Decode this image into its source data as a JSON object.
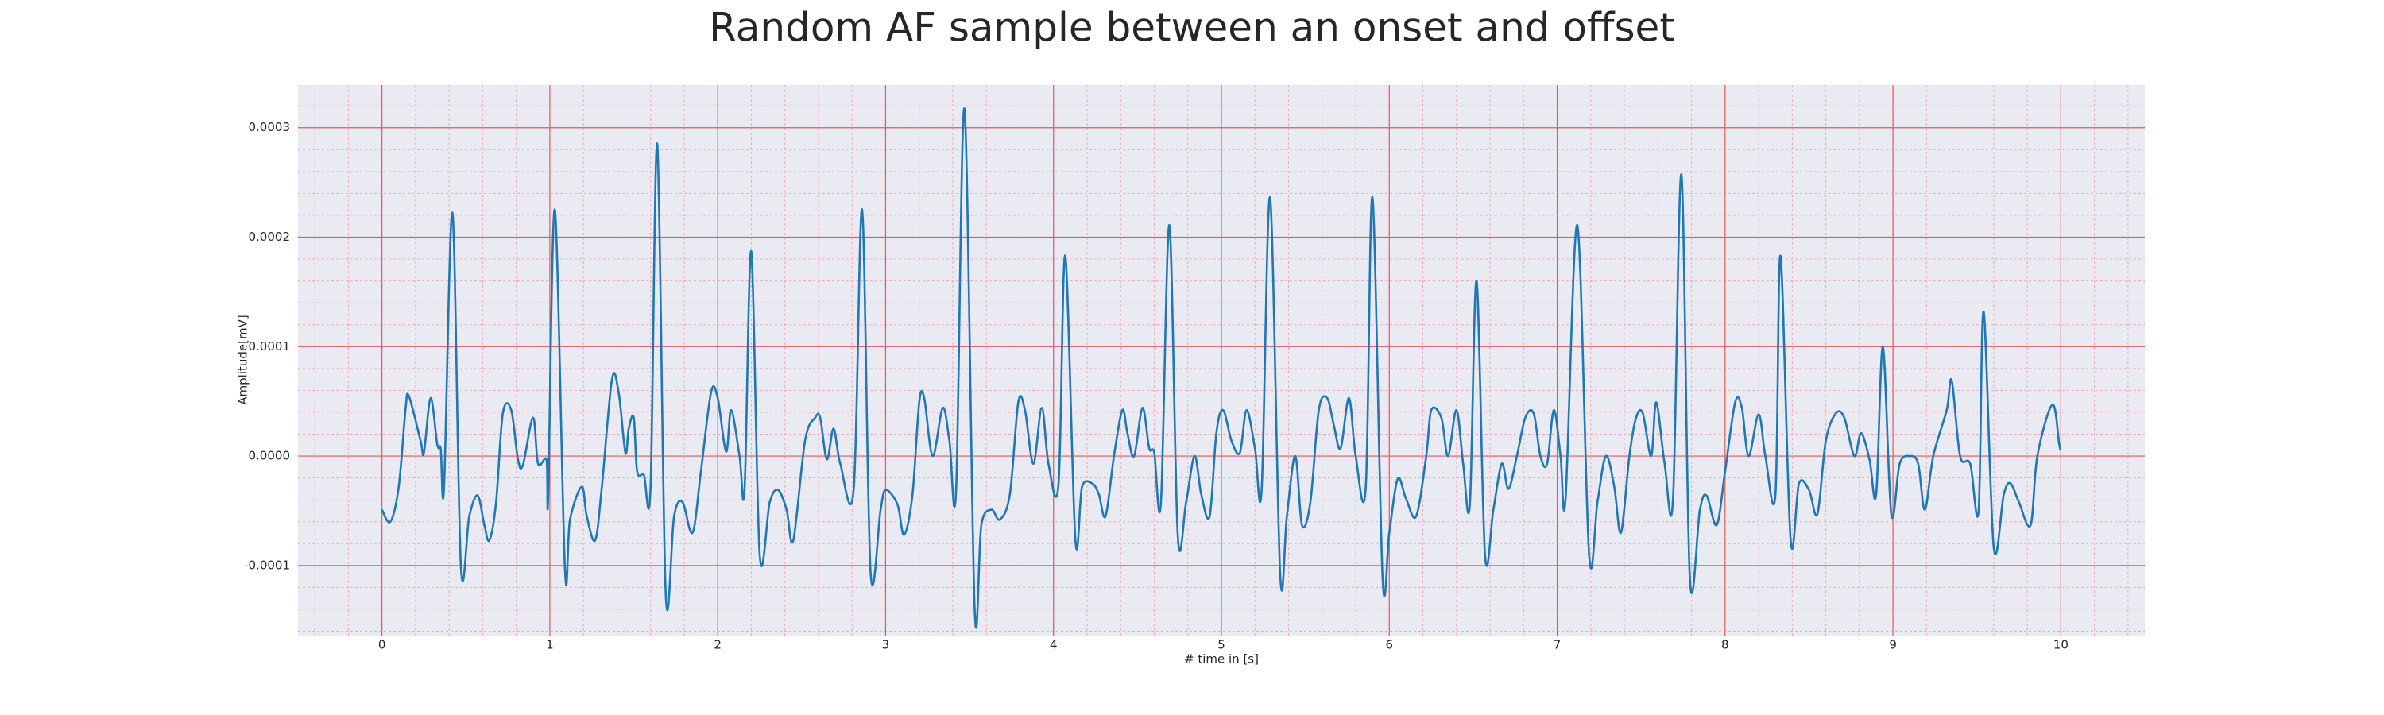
{
  "chart_data": {
    "type": "line",
    "title": "Random AF sample between an onset and offset",
    "xlabel": "# time in [s]",
    "ylabel": "Amplitude[mV]",
    "xlim": [
      -0.5,
      10.5
    ],
    "ylim": [
      -0.000164,
      0.000339
    ],
    "xticks": [
      0,
      1,
      2,
      3,
      4,
      5,
      6,
      7,
      8,
      9,
      10
    ],
    "yticks": [
      {
        "value": -0.0001,
        "label": "-0.0001"
      },
      {
        "value": 0,
        "label": "0.0000"
      },
      {
        "value": 0.0001,
        "label": "0.0001"
      },
      {
        "value": 0.0002,
        "label": "0.0002"
      },
      {
        "value": 0.0003,
        "label": "0.0003"
      }
    ],
    "grid": true,
    "minor_grid": true,
    "grid_color": "#e8585a",
    "minor_grid_color": "#f2a9b4",
    "background": "#eaeaf2",
    "series": [
      {
        "color": "#1f77b4",
        "x": [
          0,
          0.05,
          0.1,
          0.14,
          0.16,
          0.23,
          0.25,
          0.29,
          0.33,
          0.35,
          0.37,
          0.42,
          0.47,
          0.52,
          0.57,
          0.61,
          0.64,
          0.68,
          0.72,
          0.77,
          0.81,
          0.84,
          0.9,
          0.93,
          0.98,
          0.99,
          1.03,
          1.09,
          1.12,
          1.19,
          1.22,
          1.27,
          1.31,
          1.37,
          1.41,
          1.45,
          1.47,
          1.5,
          1.52,
          1.56,
          1.6,
          1.64,
          1.69,
          1.74,
          1.79,
          1.85,
          1.9,
          1.96,
          2.0,
          2.05,
          2.08,
          2.13,
          2.16,
          2.2,
          2.25,
          2.31,
          2.36,
          2.41,
          2.45,
          2.52,
          2.58,
          2.61,
          2.65,
          2.69,
          2.73,
          2.81,
          2.86,
          2.91,
          2.97,
          3.0,
          3.07,
          3.11,
          3.16,
          3.2,
          3.23,
          3.28,
          3.34,
          3.38,
          3.42,
          3.47,
          3.53,
          3.57,
          3.63,
          3.68,
          3.74,
          3.79,
          3.83,
          3.88,
          3.93,
          3.97,
          4.03,
          4.07,
          4.13,
          4.17,
          4.23,
          4.27,
          4.31,
          4.36,
          4.41,
          4.44,
          4.48,
          4.53,
          4.57,
          4.6,
          4.64,
          4.69,
          4.74,
          4.79,
          4.84,
          4.88,
          4.93,
          4.97,
          5.01,
          5.06,
          5.11,
          5.15,
          5.2,
          5.24,
          5.29,
          5.35,
          5.39,
          5.44,
          5.48,
          5.53,
          5.58,
          5.63,
          5.67,
          5.71,
          5.76,
          5.8,
          5.86,
          5.9,
          5.96,
          6.0,
          6.05,
          6.1,
          6.16,
          6.22,
          6.25,
          6.31,
          6.35,
          6.4,
          6.44,
          6.48,
          6.52,
          6.57,
          6.62,
          6.67,
          6.71,
          6.76,
          6.81,
          6.86,
          6.9,
          6.94,
          6.98,
          7.02,
          7.05,
          7.12,
          7.19,
          7.24,
          7.29,
          7.34,
          7.38,
          7.43,
          7.47,
          7.51,
          7.56,
          7.59,
          7.64,
          7.69,
          7.74,
          7.79,
          7.85,
          7.89,
          7.95,
          8.0,
          8.06,
          8.1,
          8.14,
          8.2,
          8.24,
          8.3,
          8.33,
          8.39,
          8.44,
          8.5,
          8.55,
          8.6,
          8.66,
          8.71,
          8.77,
          8.81,
          8.86,
          8.9,
          8.94,
          8.99,
          9.04,
          9.1,
          9.15,
          9.19,
          9.24,
          9.32,
          9.35,
          9.4,
          9.46,
          9.51,
          9.54,
          9.6,
          9.66,
          9.7,
          9.75,
          9.82,
          9.86,
          9.95,
          9.99,
          10.0
        ],
        "values": [
          -4.9e-05,
          -6e-05,
          -2.8e-05,
          4.2e-05,
          5.5e-05,
          1.4e-05,
          3e-06,
          5.3e-05,
          1e-05,
          7e-06,
          -2.8e-05,
          0.000222,
          -0.0001,
          -5.5e-05,
          -3.6e-05,
          -6.3e-05,
          -7.7e-05,
          -4.2e-05,
          3.9e-05,
          4.2e-05,
          -3e-06,
          -8e-06,
          3.5e-05,
          -7e-06,
          -3e-06,
          -3.7e-05,
          0.000225,
          -0.000103,
          -5.8e-05,
          -2.8e-05,
          -5.5e-05,
          -7.7e-05,
          -2.8e-05,
          7e-05,
          5.8e-05,
          3e-06,
          2.5e-05,
          3.5e-05,
          -1.4e-05,
          -1.7e-05,
          -2.8e-05,
          0.000285,
          -0.000125,
          -5.5e-05,
          -4.2e-05,
          -7e-05,
          -1.4e-05,
          5.8e-05,
          5.3e-05,
          4e-06,
          4.2e-05,
          0,
          -3e-05,
          0.000187,
          -9e-05,
          -4.2e-05,
          -3.1e-05,
          -4.9e-05,
          -7.7e-05,
          1.4e-05,
          3.5e-05,
          3.5e-05,
          -3e-06,
          2.5e-05,
          -7e-06,
          -3e-05,
          0.000225,
          -0.000105,
          -4.9e-05,
          -3.1e-05,
          -4.4e-05,
          -7.2e-05,
          -3.5e-05,
          4.9e-05,
          5.3e-05,
          0,
          4.4e-05,
          1.4e-05,
          -3e-05,
          0.000317,
          -0.000139,
          -6.3e-05,
          -4.9e-05,
          -5.8e-05,
          -3.5e-05,
          4.9e-05,
          4.2e-05,
          -7e-06,
          4.4e-05,
          -7e-06,
          -2.5e-05,
          0.000183,
          -7.6e-05,
          -2.8e-05,
          -2.5e-05,
          -3.5e-05,
          -5.5e-05,
          0,
          4.2e-05,
          2.1e-05,
          0,
          4.4e-05,
          7e-06,
          3e-06,
          -4.2e-05,
          0.000211,
          -7.2e-05,
          -4.2e-05,
          0,
          -3.5e-05,
          -5.5e-05,
          2.1e-05,
          4.2e-05,
          1.4e-05,
          3e-06,
          4.2e-05,
          7e-06,
          -3e-05,
          0.000236,
          -0.000108,
          -5.5e-05,
          0,
          -6.3e-05,
          -4.2e-05,
          4.2e-05,
          5.3e-05,
          2.8e-05,
          7e-06,
          5.3e-05,
          0,
          -2.8e-05,
          0.000236,
          -0.000111,
          -7e-05,
          -2.1e-05,
          -3.9e-05,
          -5.5e-05,
          0,
          4.2e-05,
          3.5e-05,
          0,
          4.2e-05,
          -7e-06,
          -4.4e-05,
          0.00016,
          -9e-05,
          -4.9e-05,
          -7e-06,
          -3e-05,
          0,
          3.5e-05,
          3.9e-05,
          0,
          -7e-06,
          4.2e-05,
          0,
          -3.9e-05,
          0.000211,
          -9e-05,
          -4.2e-05,
          0,
          -2.8e-05,
          -7e-05,
          0,
          3.5e-05,
          3.9e-05,
          0,
          4.9e-05,
          -7e-06,
          -3.9e-05,
          0.000257,
          -0.000111,
          -4.9e-05,
          -3.6e-05,
          -6.3e-05,
          -1.4e-05,
          4.9e-05,
          4.4e-05,
          0,
          3.8e-05,
          0,
          -3.5e-05,
          0.000183,
          -7.6e-05,
          -2.5e-05,
          -3.1e-05,
          -5.3e-05,
          1.4e-05,
          3.9e-05,
          3.5e-05,
          0,
          2.1e-05,
          -3e-06,
          -3.5e-05,
          0.0001,
          -5.3e-05,
          -7e-06,
          0,
          -7e-06,
          -4.9e-05,
          0,
          4.2e-05,
          6.9e-05,
          0,
          -7e-06,
          -5e-05,
          0.000132,
          -8.3e-05,
          -3.5e-05,
          -2.5e-05,
          -4.2e-05,
          -6.3e-05,
          0,
          4.7e-05,
          1.1e-05,
          5e-06
        ]
      }
    ]
  }
}
